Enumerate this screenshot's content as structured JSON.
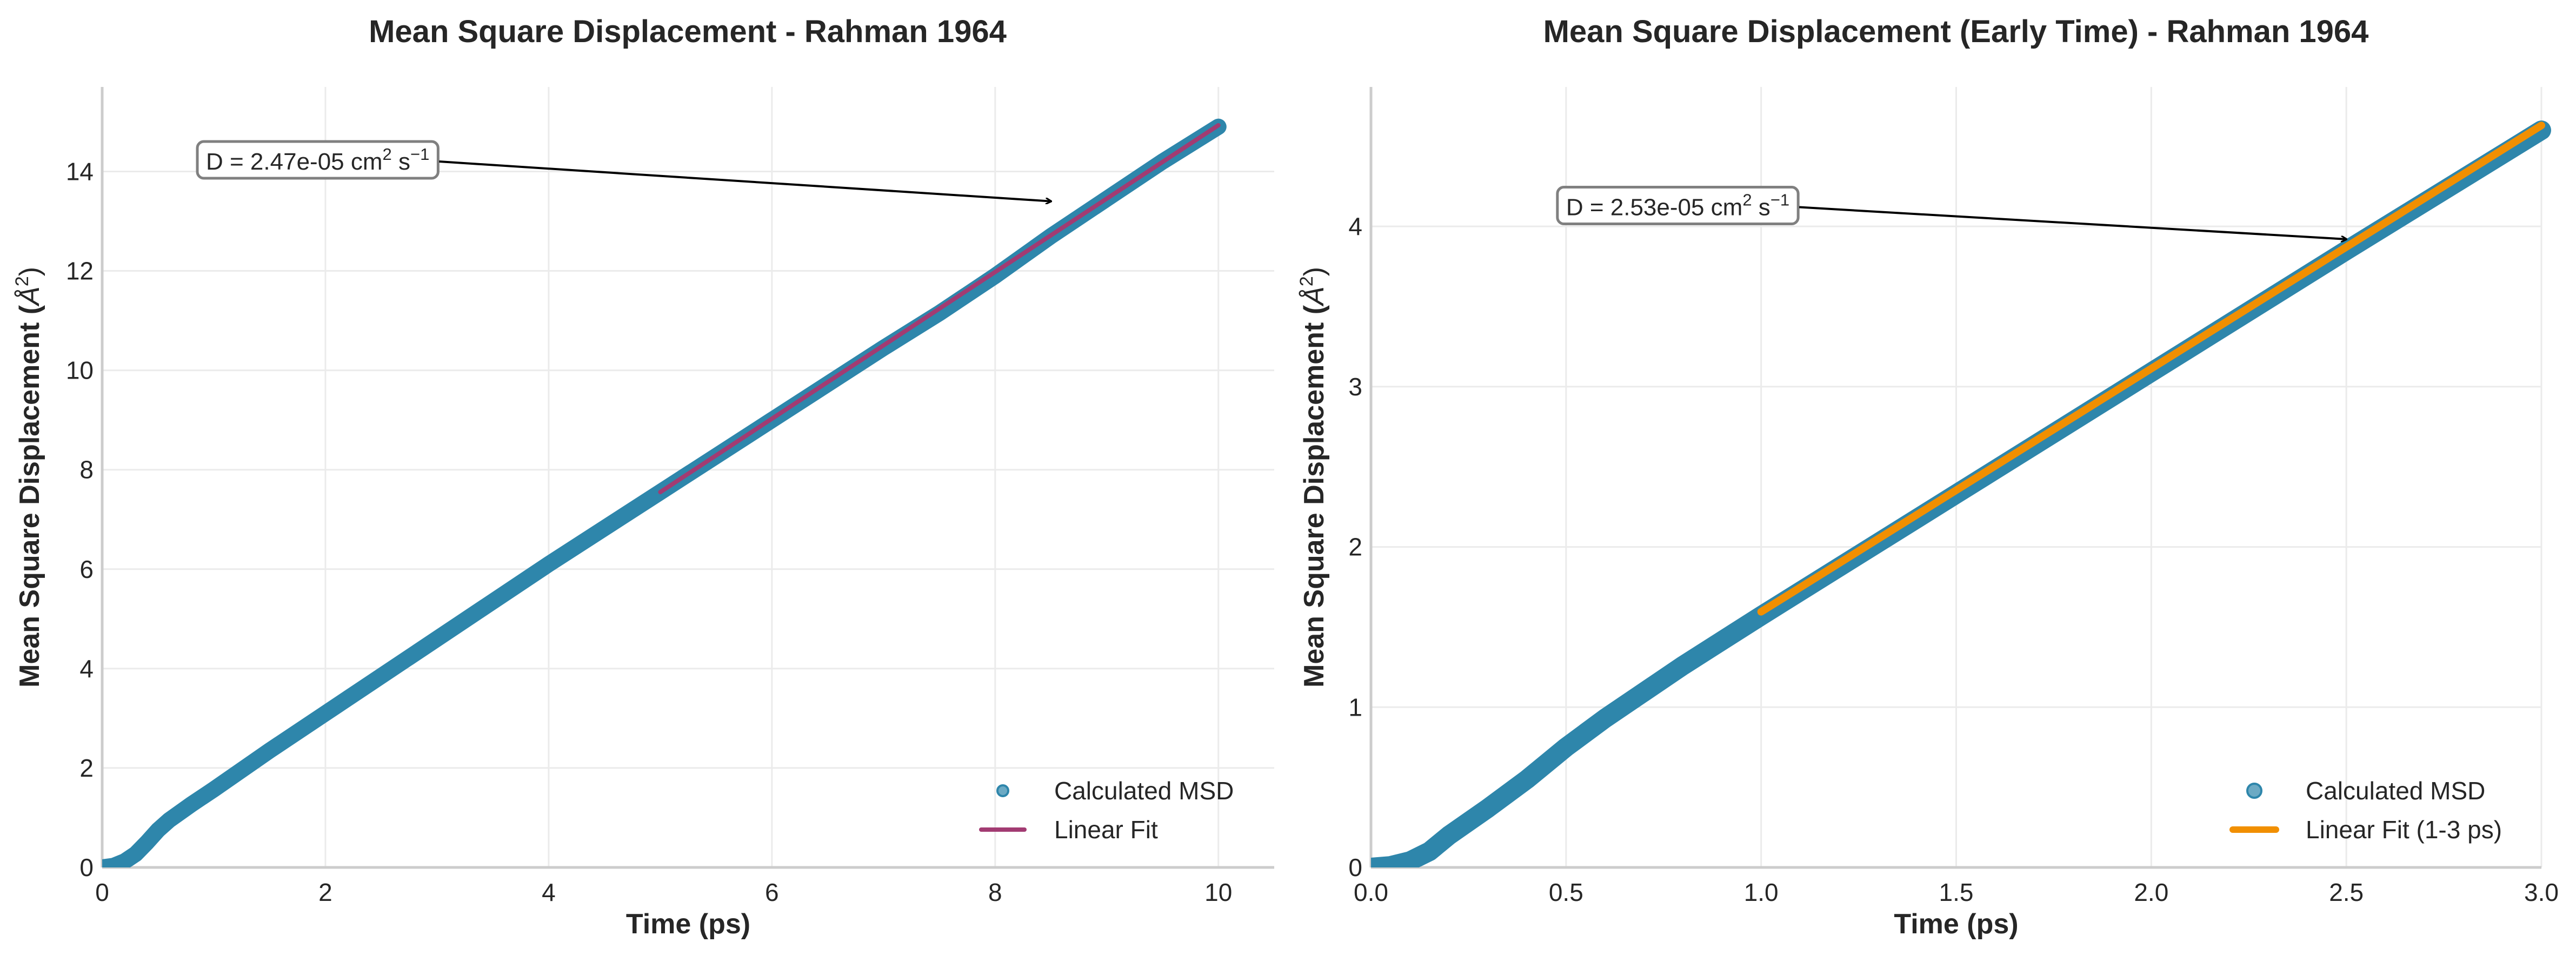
{
  "chart_data": [
    {
      "type": "line",
      "title": "Mean Square Displacement - Rahman 1964",
      "xlabel": "Time (ps)",
      "ylabel": "Mean Square Displacement (Å²)",
      "ylabel_main": "Mean Square Displacement (",
      "ylabel_unit": "Å",
      "ylabel_sup": "2",
      "ylabel_close": ")",
      "xlim": [
        0,
        10.5
      ],
      "ylim": [
        0,
        15.7
      ],
      "xticks": [
        0,
        2,
        4,
        6,
        8,
        10
      ],
      "xtick_labels": [
        "0",
        "2",
        "4",
        "6",
        "8",
        "10"
      ],
      "yticks": [
        0,
        2,
        4,
        6,
        8,
        10,
        12,
        14
      ],
      "ytick_labels": [
        "0",
        "2",
        "4",
        "6",
        "8",
        "10",
        "12",
        "14"
      ],
      "grid": true,
      "legend_position": "lower-right",
      "series": [
        {
          "name": "Calculated MSD",
          "style": "markers",
          "color": "#2e86ab",
          "x": [
            0,
            0.1,
            0.2,
            0.3,
            0.4,
            0.5,
            0.6,
            0.8,
            1.0,
            1.5,
            2,
            3,
            4,
            5,
            6,
            7,
            7.5,
            8,
            8.5,
            9,
            9.5,
            10
          ],
          "y": [
            0,
            0.03,
            0.12,
            0.27,
            0.5,
            0.75,
            0.95,
            1.27,
            1.57,
            2.35,
            3.1,
            4.6,
            6.1,
            7.55,
            9.0,
            10.45,
            11.15,
            11.9,
            12.7,
            13.45,
            14.2,
            14.9
          ]
        },
        {
          "name": "Linear Fit",
          "style": "line",
          "color": "#a23b72",
          "x": [
            5,
            10
          ],
          "y": [
            7.55,
            14.93
          ]
        }
      ],
      "annotation": {
        "prefix": "D = 2.47e-05 cm",
        "sup1": "2",
        "mid": " s",
        "sup2": "−1",
        "text_at": [
          0.93,
          14.2
        ],
        "arrow_to": [
          8.5,
          13.4
        ]
      }
    },
    {
      "type": "line",
      "title": "Mean Square Displacement (Early Time) - Rahman 1964",
      "xlabel": "Time (ps)",
      "ylabel": "Mean Square Displacement (Å²)",
      "ylabel_main": "Mean Square Displacement (",
      "ylabel_unit": "Å",
      "ylabel_sup": "2",
      "ylabel_close": ")",
      "xlim": [
        0,
        3
      ],
      "ylim": [
        0,
        4.87
      ],
      "xticks": [
        0,
        0.5,
        1,
        1.5,
        2,
        2.5,
        3
      ],
      "xtick_labels": [
        "0.0",
        "0.5",
        "1.0",
        "1.5",
        "2.0",
        "2.5",
        "3.0"
      ],
      "yticks": [
        0,
        1,
        2,
        3,
        4
      ],
      "ytick_labels": [
        "0",
        "1",
        "2",
        "3",
        "4"
      ],
      "grid": true,
      "legend_position": "lower-right",
      "series": [
        {
          "name": "Calculated MSD",
          "style": "markers",
          "color": "#2e86ab",
          "x": [
            0,
            0.05,
            0.1,
            0.15,
            0.2,
            0.3,
            0.4,
            0.5,
            0.6,
            0.8,
            1.0,
            1.5,
            2.0,
            2.5,
            3.0
          ],
          "y": [
            0,
            0.01,
            0.04,
            0.1,
            0.2,
            0.37,
            0.55,
            0.75,
            0.93,
            1.26,
            1.57,
            2.33,
            3.09,
            3.85,
            4.6
          ]
        },
        {
          "name": "Linear Fit (1-3 ps)",
          "style": "line",
          "color": "#f18f01",
          "x": [
            1,
            3
          ],
          "y": [
            1.595,
            4.63
          ]
        }
      ],
      "annotation": {
        "prefix": "D = 2.53e-05 cm",
        "sup1": "2",
        "mid": " s",
        "sup2": "−1",
        "text_at": [
          0.5,
          4.12
        ],
        "arrow_to": [
          2.5,
          3.92
        ]
      }
    }
  ]
}
